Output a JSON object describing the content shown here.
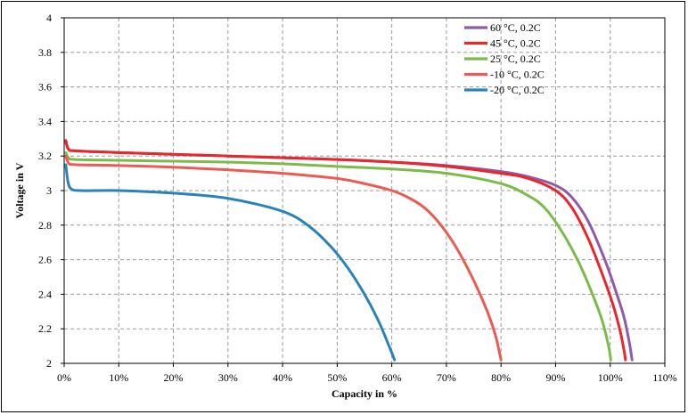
{
  "chart_data": {
    "type": "line",
    "xlabel": "Capacity  in %",
    "ylabel": "Voltage in V",
    "xlim": [
      0,
      110
    ],
    "ylim": [
      2,
      4
    ],
    "x_ticks": [
      "0%",
      "10%",
      "20%",
      "30%",
      "40%",
      "50%",
      "60%",
      "70%",
      "80%",
      "90%",
      "100%",
      "110%"
    ],
    "y_ticks": [
      "2",
      "2.2",
      "2.4",
      "2.6",
      "2.8",
      "3",
      "3.2",
      "3.4",
      "3.6",
      "3.8",
      "4"
    ],
    "grid": true,
    "legend_position": "top-right",
    "series": [
      {
        "name": "60  °C, 0.2C",
        "color": "#8e5ba6",
        "points": [
          [
            0.3,
            3.28
          ],
          [
            0.8,
            3.24
          ],
          [
            2,
            3.23
          ],
          [
            10,
            3.22
          ],
          [
            20,
            3.21
          ],
          [
            30,
            3.2
          ],
          [
            40,
            3.19
          ],
          [
            50,
            3.18
          ],
          [
            60,
            3.165
          ],
          [
            70,
            3.145
          ],
          [
            80,
            3.11
          ],
          [
            85,
            3.08
          ],
          [
            90,
            3.03
          ],
          [
            93,
            2.96
          ],
          [
            96,
            2.82
          ],
          [
            99,
            2.6
          ],
          [
            101,
            2.42
          ],
          [
            102.5,
            2.27
          ],
          [
            103.5,
            2.12
          ],
          [
            104,
            2.02
          ]
        ]
      },
      {
        "name": "45 °C, 0.2C",
        "color": "#e8262b",
        "points": [
          [
            0.3,
            3.29
          ],
          [
            0.8,
            3.24
          ],
          [
            2,
            3.23
          ],
          [
            10,
            3.22
          ],
          [
            20,
            3.21
          ],
          [
            30,
            3.2
          ],
          [
            40,
            3.19
          ],
          [
            50,
            3.18
          ],
          [
            60,
            3.165
          ],
          [
            70,
            3.14
          ],
          [
            80,
            3.1
          ],
          [
            85,
            3.07
          ],
          [
            90,
            3.0
          ],
          [
            93,
            2.9
          ],
          [
            96,
            2.72
          ],
          [
            98.5,
            2.52
          ],
          [
            100.5,
            2.34
          ],
          [
            101.8,
            2.19
          ],
          [
            102.5,
            2.08
          ],
          [
            102.8,
            2.02
          ]
        ]
      },
      {
        "name": "25  °C, 0.2C",
        "color": "#7cba4a",
        "points": [
          [
            0.3,
            3.22
          ],
          [
            0.8,
            3.19
          ],
          [
            2,
            3.18
          ],
          [
            10,
            3.175
          ],
          [
            20,
            3.17
          ],
          [
            30,
            3.165
          ],
          [
            40,
            3.155
          ],
          [
            50,
            3.14
          ],
          [
            60,
            3.125
          ],
          [
            70,
            3.1
          ],
          [
            80,
            3.04
          ],
          [
            85,
            2.97
          ],
          [
            88,
            2.9
          ],
          [
            91,
            2.77
          ],
          [
            94,
            2.6
          ],
          [
            96.5,
            2.42
          ],
          [
            98.5,
            2.25
          ],
          [
            99.7,
            2.1
          ],
          [
            100.1,
            2.02
          ]
        ]
      },
      {
        "name": "-10  °C, 0.2C",
        "color": "#eb5b53",
        "points": [
          [
            0.3,
            3.2
          ],
          [
            0.8,
            3.16
          ],
          [
            2,
            3.15
          ],
          [
            10,
            3.145
          ],
          [
            20,
            3.135
          ],
          [
            30,
            3.12
          ],
          [
            40,
            3.1
          ],
          [
            50,
            3.07
          ],
          [
            55,
            3.04
          ],
          [
            60,
            3.0
          ],
          [
            63,
            2.96
          ],
          [
            66,
            2.9
          ],
          [
            69,
            2.8
          ],
          [
            72,
            2.66
          ],
          [
            75,
            2.48
          ],
          [
            77.5,
            2.3
          ],
          [
            79,
            2.16
          ],
          [
            79.8,
            2.05
          ],
          [
            80,
            2.02
          ]
        ]
      },
      {
        "name": "-20 °C, 0.2C",
        "color": "#2a83b8",
        "points": [
          [
            0.3,
            3.15
          ],
          [
            0.7,
            3.05
          ],
          [
            1.3,
            3.01
          ],
          [
            3,
            3.0
          ],
          [
            10,
            3.0
          ],
          [
            20,
            2.985
          ],
          [
            30,
            2.955
          ],
          [
            40,
            2.88
          ],
          [
            45,
            2.79
          ],
          [
            49,
            2.67
          ],
          [
            52,
            2.55
          ],
          [
            55,
            2.4
          ],
          [
            57.5,
            2.25
          ],
          [
            59.5,
            2.1
          ],
          [
            60.5,
            2.02
          ]
        ]
      }
    ]
  }
}
